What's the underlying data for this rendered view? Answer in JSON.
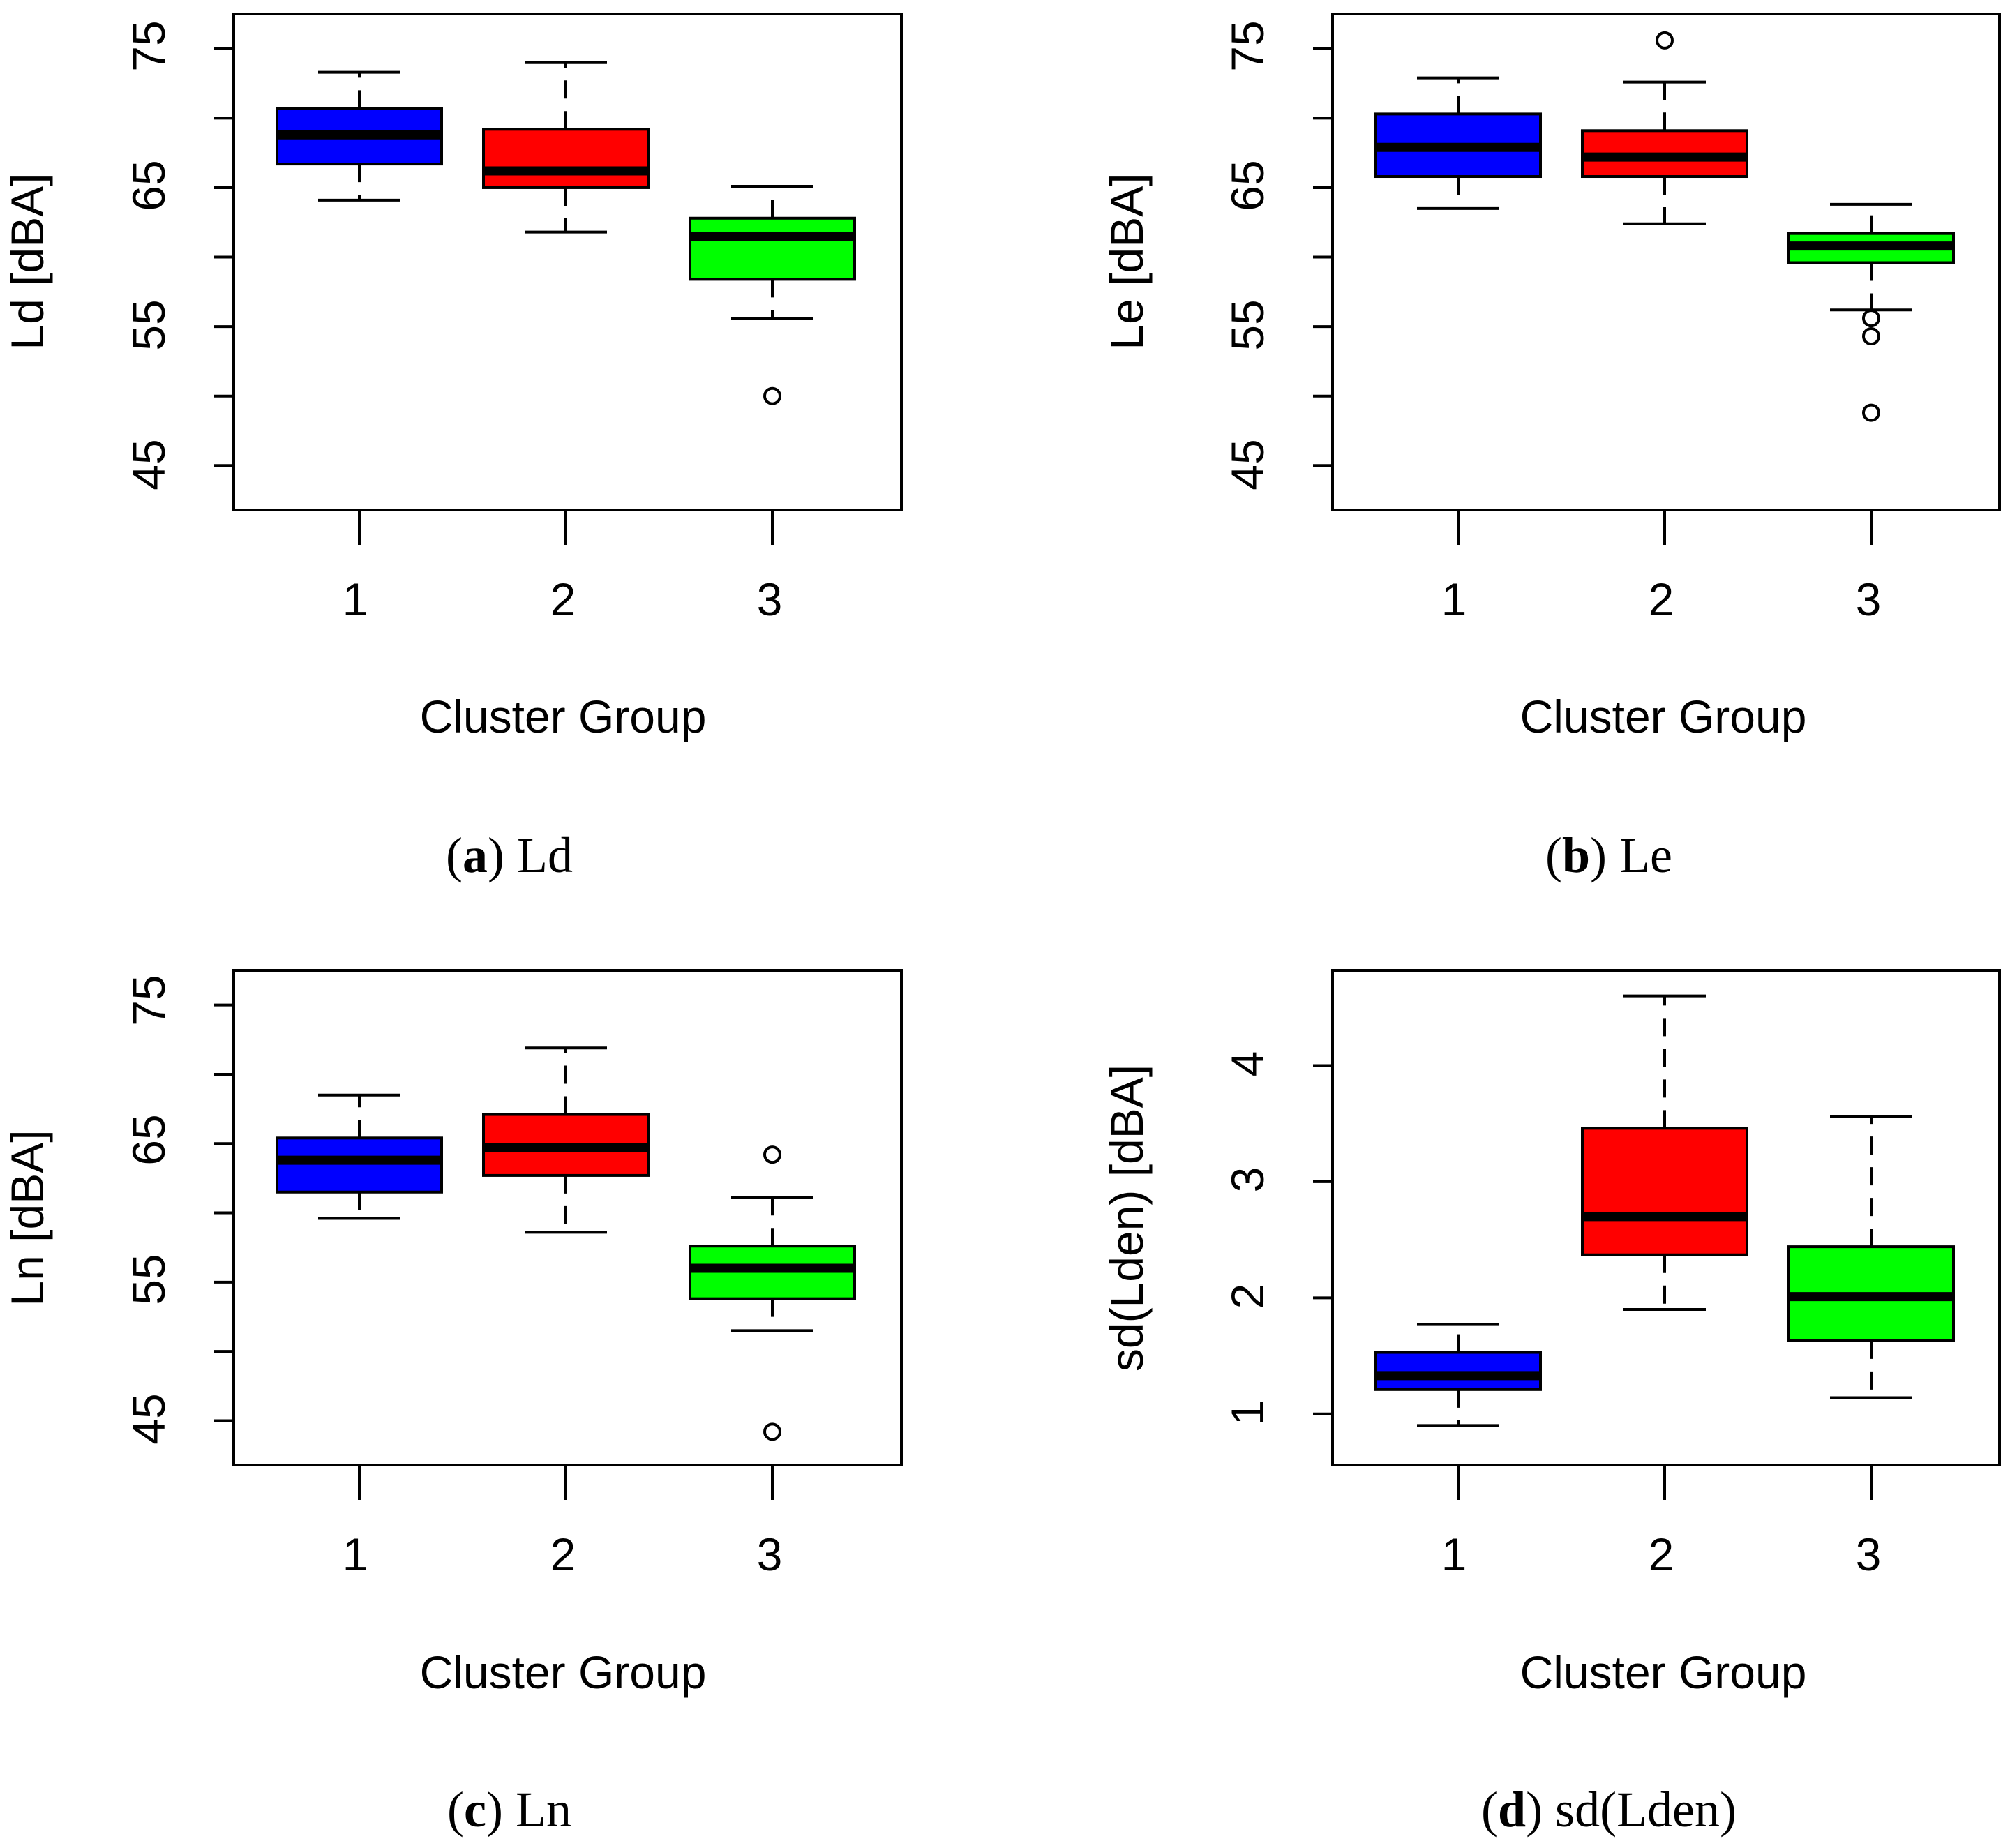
{
  "chart_data": [
    {
      "type": "box",
      "panel": "a",
      "caption": {
        "letter": "a",
        "text": "Ld"
      },
      "xlabel": "Cluster Group",
      "ylabel": "Ld [dBA]",
      "categories": [
        "1",
        "2",
        "3"
      ],
      "ylim": [
        41.8,
        77.5
      ],
      "yticks": [
        45,
        50,
        55,
        60,
        65,
        70,
        75
      ],
      "ytick_labels": [
        "45",
        "55",
        "65",
        "75"
      ],
      "boxes": [
        {
          "group": "1",
          "color": "#0000ff",
          "whisker_low": 64.1,
          "q1": 66.7,
          "median": 68.8,
          "q3": 70.7,
          "whisker_high": 73.3,
          "outliers": []
        },
        {
          "group": "2",
          "color": "#ff0000",
          "whisker_low": 61.8,
          "q1": 65.0,
          "median": 66.2,
          "q3": 69.2,
          "whisker_high": 74.0,
          "outliers": []
        },
        {
          "group": "3",
          "color": "#00ff00",
          "whisker_low": 55.6,
          "q1": 58.4,
          "median": 61.5,
          "q3": 62.8,
          "whisker_high": 65.1,
          "outliers": [
            50.0
          ]
        }
      ]
    },
    {
      "type": "box",
      "panel": "b",
      "caption": {
        "letter": "b",
        "text": "Le"
      },
      "xlabel": "Cluster Group",
      "ylabel": "Le [dBA]",
      "categories": [
        "1",
        "2",
        "3"
      ],
      "ylim": [
        41.8,
        77.5
      ],
      "yticks": [
        45,
        50,
        55,
        60,
        65,
        70,
        75
      ],
      "ytick_labels": [
        "45",
        "55",
        "65",
        "75"
      ],
      "boxes": [
        {
          "group": "1",
          "color": "#0000ff",
          "whisker_low": 63.5,
          "q1": 65.8,
          "median": 67.9,
          "q3": 70.3,
          "whisker_high": 72.9,
          "outliers": []
        },
        {
          "group": "2",
          "color": "#ff0000",
          "whisker_low": 62.4,
          "q1": 65.8,
          "median": 67.2,
          "q3": 69.1,
          "whisker_high": 72.6,
          "outliers": [
            75.6
          ]
        },
        {
          "group": "3",
          "color": "#00ff00",
          "whisker_low": 56.2,
          "q1": 59.6,
          "median": 60.8,
          "q3": 61.7,
          "whisker_high": 63.8,
          "outliers": [
            55.6,
            54.3,
            48.8
          ]
        }
      ]
    },
    {
      "type": "box",
      "panel": "c",
      "caption": {
        "letter": "c",
        "text": "Ln"
      },
      "xlabel": "Cluster Group",
      "ylabel": "Ln [dBA]",
      "categories": [
        "1",
        "2",
        "3"
      ],
      "ylim": [
        41.8,
        77.5
      ],
      "yticks": [
        45,
        50,
        55,
        60,
        65,
        70,
        75
      ],
      "ytick_labels": [
        "45",
        "55",
        "65",
        "75"
      ],
      "boxes": [
        {
          "group": "1",
          "color": "#0000ff",
          "whisker_low": 59.6,
          "q1": 61.5,
          "median": 63.8,
          "q3": 65.4,
          "whisker_high": 68.5,
          "outliers": []
        },
        {
          "group": "2",
          "color": "#ff0000",
          "whisker_low": 58.6,
          "q1": 62.7,
          "median": 64.7,
          "q3": 67.1,
          "whisker_high": 71.9,
          "outliers": []
        },
        {
          "group": "3",
          "color": "#00ff00",
          "whisker_low": 51.5,
          "q1": 53.8,
          "median": 56.0,
          "q3": 57.6,
          "whisker_high": 61.1,
          "outliers": [
            64.2,
            44.2
          ]
        }
      ]
    },
    {
      "type": "box",
      "panel": "d",
      "caption": {
        "letter": "d",
        "text": "sd(Lden)"
      },
      "xlabel": "Cluster Group",
      "ylabel": "sd(Lden) [dBA]",
      "categories": [
        "1",
        "2",
        "3"
      ],
      "ylim": [
        0.56,
        4.82
      ],
      "yticks": [
        1,
        2,
        3,
        4
      ],
      "ytick_labels": [
        "1",
        "2",
        "3",
        "4"
      ],
      "boxes": [
        {
          "group": "1",
          "color": "#0000ff",
          "whisker_low": 0.9,
          "q1": 1.21,
          "median": 1.33,
          "q3": 1.53,
          "whisker_high": 1.77,
          "outliers": []
        },
        {
          "group": "2",
          "color": "#ff0000",
          "whisker_low": 1.9,
          "q1": 2.37,
          "median": 2.7,
          "q3": 3.46,
          "whisker_high": 4.6,
          "outliers": []
        },
        {
          "group": "3",
          "color": "#00ff00",
          "whisker_low": 1.14,
          "q1": 1.63,
          "median": 2.01,
          "q3": 2.44,
          "whisker_high": 3.56,
          "outliers": []
        }
      ]
    }
  ]
}
